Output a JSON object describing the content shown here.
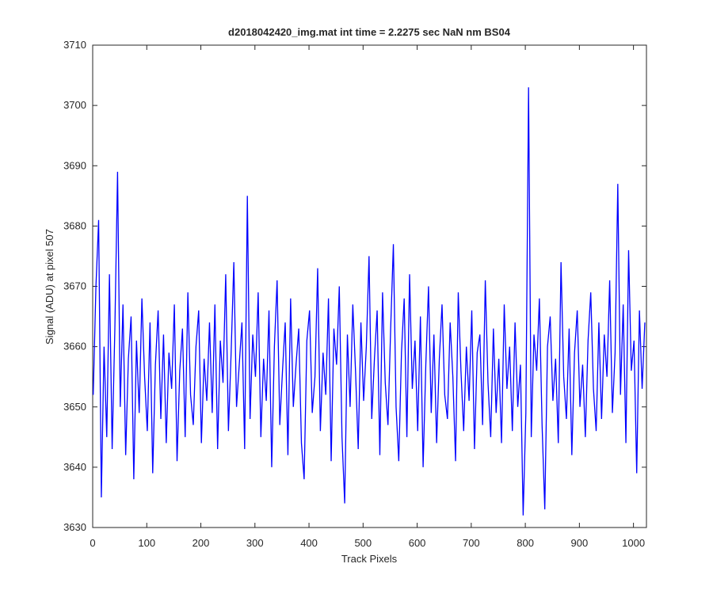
{
  "chart_data": {
    "type": "line",
    "title": "d2018042420_img.mat int time = 2.2275 sec  NaN nm BS04",
    "xlabel": "Track Pixels",
    "ylabel": "Signal (ADU) at pixel 507",
    "xlim": [
      0,
      1024
    ],
    "ylim": [
      3630,
      3710
    ],
    "xticks": [
      0,
      100,
      200,
      300,
      400,
      500,
      600,
      700,
      800,
      900,
      1000
    ],
    "yticks": [
      3630,
      3640,
      3650,
      3660,
      3670,
      3680,
      3690,
      3700,
      3710
    ],
    "x": [
      1,
      6,
      11,
      16,
      21,
      26,
      31,
      36,
      41,
      46,
      51,
      56,
      61,
      66,
      71,
      76,
      81,
      86,
      91,
      96,
      101,
      106,
      111,
      116,
      121,
      126,
      131,
      136,
      141,
      146,
      151,
      156,
      161,
      166,
      171,
      176,
      181,
      186,
      191,
      196,
      201,
      206,
      211,
      216,
      221,
      226,
      231,
      236,
      241,
      246,
      251,
      256,
      261,
      266,
      271,
      276,
      281,
      286,
      291,
      296,
      301,
      306,
      311,
      316,
      321,
      326,
      331,
      336,
      341,
      346,
      351,
      356,
      361,
      366,
      371,
      376,
      381,
      386,
      391,
      396,
      401,
      406,
      411,
      416,
      421,
      426,
      431,
      436,
      441,
      446,
      451,
      456,
      461,
      466,
      471,
      476,
      481,
      486,
      491,
      496,
      501,
      506,
      511,
      516,
      521,
      526,
      531,
      536,
      541,
      546,
      551,
      556,
      561,
      566,
      571,
      576,
      581,
      586,
      591,
      596,
      601,
      606,
      611,
      616,
      621,
      626,
      631,
      636,
      641,
      646,
      651,
      656,
      661,
      666,
      671,
      676,
      681,
      686,
      691,
      696,
      701,
      706,
      711,
      716,
      721,
      726,
      731,
      736,
      741,
      746,
      751,
      756,
      761,
      766,
      771,
      776,
      781,
      786,
      791,
      796,
      801,
      806,
      811,
      816,
      821,
      826,
      831,
      836,
      841,
      846,
      851,
      856,
      861,
      866,
      871,
      876,
      881,
      886,
      891,
      896,
      901,
      906,
      911,
      916,
      921,
      926,
      931,
      936,
      941,
      946,
      951,
      956,
      961,
      966,
      971,
      976,
      981,
      986,
      991,
      996,
      1001,
      1006,
      1011,
      1016,
      1021
    ],
    "series": [
      {
        "color": "#0000ff",
        "values": [
          3652,
          3670,
          3681,
          3635,
          3660,
          3645,
          3672,
          3643,
          3663,
          3689,
          3650,
          3667,
          3642,
          3658,
          3665,
          3638,
          3661,
          3649,
          3668,
          3655,
          3646,
          3664,
          3639,
          3657,
          3666,
          3648,
          3662,
          3644,
          3659,
          3653,
          3667,
          3641,
          3656,
          3663,
          3645,
          3669,
          3652,
          3647,
          3660,
          3666,
          3644,
          3658,
          3651,
          3664,
          3649,
          3667,
          3643,
          3661,
          3654,
          3672,
          3646,
          3659,
          3674,
          3650,
          3657,
          3664,
          3643,
          3685,
          3648,
          3662,
          3655,
          3669,
          3645,
          3658,
          3651,
          3666,
          3640,
          3660,
          3671,
          3647,
          3656,
          3664,
          3642,
          3668,
          3650,
          3657,
          3663,
          3644,
          3638,
          3661,
          3666,
          3649,
          3655,
          3673,
          3646,
          3659,
          3652,
          3668,
          3641,
          3663,
          3657,
          3670,
          3645,
          3634,
          3662,
          3650,
          3667,
          3656,
          3643,
          3664,
          3651,
          3660,
          3675,
          3648,
          3658,
          3666,
          3642,
          3669,
          3654,
          3647,
          3663,
          3677,
          3650,
          3641,
          3659,
          3668,
          3645,
          3672,
          3653,
          3661,
          3646,
          3665,
          3640,
          3657,
          3670,
          3649,
          3662,
          3644,
          3658,
          3667,
          3652,
          3648,
          3664,
          3655,
          3641,
          3669,
          3656,
          3646,
          3660,
          3651,
          3666,
          3643,
          3659,
          3662,
          3647,
          3671,
          3654,
          3645,
          3663,
          3649,
          3658,
          3644,
          3667,
          3653,
          3660,
          3646,
          3664,
          3650,
          3657,
          3632,
          3649,
          3703,
          3645,
          3662,
          3656,
          3668,
          3647,
          3633,
          3660,
          3665,
          3651,
          3658,
          3644,
          3674,
          3655,
          3648,
          3663,
          3642,
          3659,
          3666,
          3650,
          3657,
          3645,
          3661,
          3669,
          3653,
          3646,
          3664,
          3648,
          3662,
          3655,
          3671,
          3649,
          3659,
          3687,
          3652,
          3667,
          3644,
          3676,
          3656,
          3661,
          3639,
          3666,
          3653,
          3664
        ]
      }
    ]
  }
}
